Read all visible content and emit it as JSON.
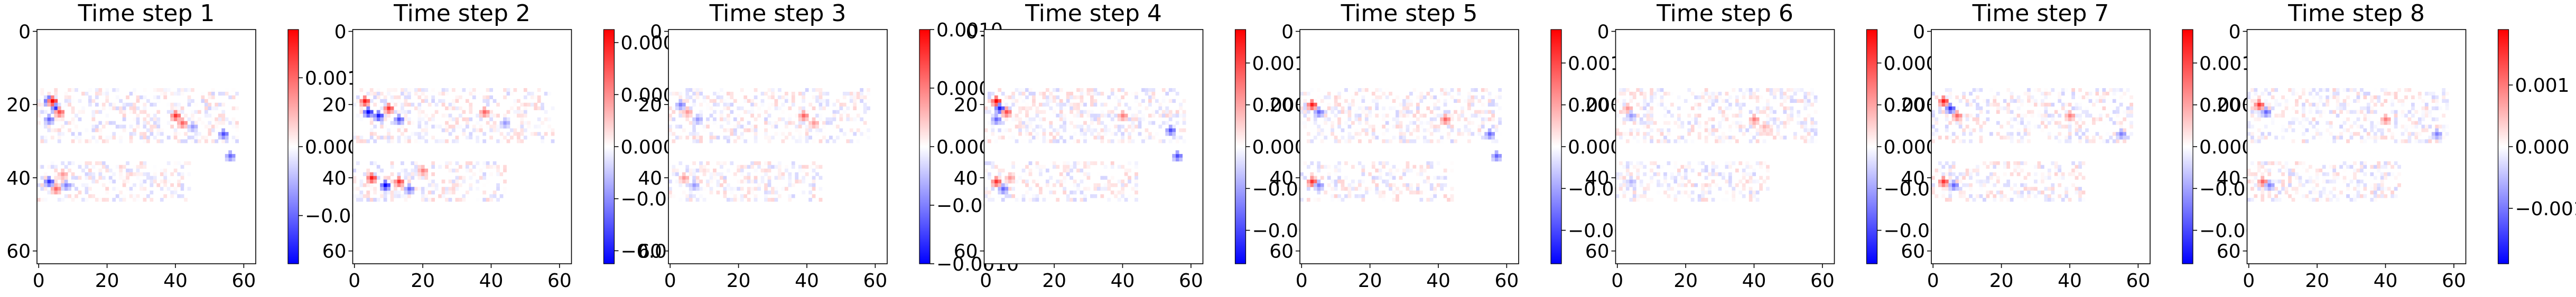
{
  "colors": {
    "negative": "#0000ff",
    "zero": "#ffffff",
    "positive": "#ff0000",
    "axis": "#000000"
  },
  "colormap": "bwr",
  "chart_data": [
    {
      "type": "heatmap",
      "title": "Time step 1",
      "grid": false,
      "xlim": [
        0,
        63
      ],
      "ylim": [
        63,
        0
      ],
      "xticks": [
        "0",
        "20",
        "40",
        "60"
      ],
      "yticks": [
        "0",
        "20",
        "40",
        "60"
      ],
      "clim": [
        -0.0017,
        0.0017
      ],
      "colorbar_ticks": [
        {
          "value": 0.001,
          "label": "0.001"
        },
        {
          "value": 0.0,
          "label": "0.000"
        },
        {
          "value": -0.001,
          "label": "−0.001"
        }
      ],
      "features": [
        {
          "x": 3,
          "y": 19,
          "v": -1.0
        },
        {
          "x": 4,
          "y": 19,
          "v": 1.0
        },
        {
          "x": 5,
          "y": 21,
          "v": -0.8
        },
        {
          "x": 6,
          "y": 22,
          "v": 0.7
        },
        {
          "x": 3,
          "y": 24,
          "v": -0.6
        },
        {
          "x": 40,
          "y": 23,
          "v": 0.8
        },
        {
          "x": 42,
          "y": 25,
          "v": 0.6
        },
        {
          "x": 45,
          "y": 26,
          "v": -0.4
        },
        {
          "x": 54,
          "y": 28,
          "v": -0.7
        },
        {
          "x": 56,
          "y": 34,
          "v": -0.6
        },
        {
          "x": 3,
          "y": 41,
          "v": -0.8
        },
        {
          "x": 5,
          "y": 43,
          "v": 0.6
        },
        {
          "x": 8,
          "y": 42,
          "v": -0.5
        },
        {
          "x": 7,
          "y": 39,
          "v": 0.4
        }
      ]
    },
    {
      "type": "heatmap",
      "title": "Time step 2",
      "grid": false,
      "xlim": [
        0,
        63
      ],
      "ylim": [
        63,
        0
      ],
      "xticks": [
        "0",
        "20",
        "40",
        "60"
      ],
      "yticks": [
        "0",
        "20",
        "40",
        "60"
      ],
      "clim": [
        -0.00045,
        0.00045
      ],
      "colorbar_ticks": [
        {
          "value": 0.0004,
          "label": "0.0004"
        },
        {
          "value": 0.0002,
          "label": "0.0002"
        },
        {
          "value": 0.0,
          "label": "0.0000"
        },
        {
          "value": -0.0002,
          "label": "−0.0002"
        },
        {
          "value": -0.0004,
          "label": "−0.0004"
        }
      ],
      "features": [
        {
          "x": 3,
          "y": 19,
          "v": 0.9
        },
        {
          "x": 4,
          "y": 22,
          "v": -1.0
        },
        {
          "x": 7,
          "y": 23,
          "v": -0.9
        },
        {
          "x": 10,
          "y": 21,
          "v": 0.8
        },
        {
          "x": 13,
          "y": 24,
          "v": -0.7
        },
        {
          "x": 38,
          "y": 22,
          "v": 0.6
        },
        {
          "x": 44,
          "y": 25,
          "v": -0.4
        },
        {
          "x": 5,
          "y": 40,
          "v": 0.9
        },
        {
          "x": 9,
          "y": 42,
          "v": -1.0
        },
        {
          "x": 13,
          "y": 41,
          "v": 0.8
        },
        {
          "x": 16,
          "y": 43,
          "v": -0.6
        },
        {
          "x": 20,
          "y": 38,
          "v": 0.5
        }
      ]
    },
    {
      "type": "heatmap",
      "title": "Time step 3",
      "grid": false,
      "xlim": [
        0,
        63
      ],
      "ylim": [
        63,
        0
      ],
      "xticks": [
        "0",
        "20",
        "40",
        "60"
      ],
      "yticks": [
        "0",
        "20",
        "40",
        "60"
      ],
      "clim": [
        -0.001,
        0.001
      ],
      "colorbar_ticks": [
        {
          "value": 0.001,
          "label": "0.0010"
        },
        {
          "value": 0.0005,
          "label": "0.0005"
        },
        {
          "value": 0.0,
          "label": "0.0000"
        },
        {
          "value": -0.0005,
          "label": "−0.0005"
        },
        {
          "value": -0.001,
          "label": "−0.0010"
        }
      ],
      "features": [
        {
          "x": 3,
          "y": 20,
          "v": -0.5
        },
        {
          "x": 5,
          "y": 22,
          "v": 0.4
        },
        {
          "x": 8,
          "y": 24,
          "v": -0.4
        },
        {
          "x": 39,
          "y": 23,
          "v": 0.6
        },
        {
          "x": 42,
          "y": 25,
          "v": 0.4
        },
        {
          "x": 4,
          "y": 40,
          "v": 0.4
        },
        {
          "x": 7,
          "y": 42,
          "v": -0.4
        }
      ]
    },
    {
      "type": "heatmap",
      "title": "Time step 4",
      "grid": false,
      "xlim": [
        0,
        63
      ],
      "ylim": [
        63,
        0
      ],
      "xticks": [
        "0",
        "20",
        "40",
        "60"
      ],
      "yticks": [
        "0",
        "20",
        "40",
        "60"
      ],
      "clim": [
        -0.0014,
        0.0014
      ],
      "colorbar_ticks": [
        {
          "value": 0.001,
          "label": "0.0010"
        },
        {
          "value": 0.0005,
          "label": "0.0005"
        },
        {
          "value": 0.0,
          "label": "0.0000"
        },
        {
          "value": -0.0005,
          "label": "−0.0005"
        },
        {
          "value": -0.001,
          "label": "−0.0010"
        }
      ],
      "features": [
        {
          "x": 3,
          "y": 19,
          "v": 1.0
        },
        {
          "x": 4,
          "y": 21,
          "v": -0.9
        },
        {
          "x": 6,
          "y": 22,
          "v": 0.7
        },
        {
          "x": 3,
          "y": 24,
          "v": -0.6
        },
        {
          "x": 40,
          "y": 23,
          "v": 0.5
        },
        {
          "x": 54,
          "y": 27,
          "v": -0.7
        },
        {
          "x": 56,
          "y": 34,
          "v": -0.7
        },
        {
          "x": 3,
          "y": 41,
          "v": 0.8
        },
        {
          "x": 5,
          "y": 43,
          "v": -0.6
        },
        {
          "x": 7,
          "y": 40,
          "v": 0.4
        }
      ]
    },
    {
      "type": "heatmap",
      "title": "Time step 5",
      "grid": false,
      "xlim": [
        0,
        63
      ],
      "ylim": [
        63,
        0
      ],
      "xticks": [
        "0",
        "20",
        "40",
        "60"
      ],
      "yticks": [
        "0",
        "20",
        "40",
        "60"
      ],
      "clim": [
        -0.0014,
        0.0014
      ],
      "colorbar_ticks": [
        {
          "value": 0.001,
          "label": "0.0010"
        },
        {
          "value": 0.0005,
          "label": "0.0005"
        },
        {
          "value": 0.0,
          "label": "0.0000"
        },
        {
          "value": -0.0005,
          "label": "−0.0005"
        },
        {
          "value": -0.001,
          "label": "−0.0010"
        }
      ],
      "features": [
        {
          "x": 3,
          "y": 20,
          "v": 0.9
        },
        {
          "x": 5,
          "y": 22,
          "v": -0.6
        },
        {
          "x": 42,
          "y": 24,
          "v": 0.6
        },
        {
          "x": 55,
          "y": 28,
          "v": -0.6
        },
        {
          "x": 57,
          "y": 34,
          "v": -0.6
        },
        {
          "x": 3,
          "y": 41,
          "v": 0.8
        },
        {
          "x": 5,
          "y": 42,
          "v": -0.5
        }
      ]
    },
    {
      "type": "heatmap",
      "title": "Time step 6",
      "grid": false,
      "xlim": [
        0,
        63
      ],
      "ylim": [
        63,
        0
      ],
      "xticks": [
        "0",
        "20",
        "40",
        "60"
      ],
      "yticks": [
        "0",
        "20",
        "40",
        "60"
      ],
      "clim": [
        -0.0007,
        0.0007
      ],
      "colorbar_ticks": [
        {
          "value": 0.0005,
          "label": "0.00050"
        },
        {
          "value": 0.00025,
          "label": "0.00025"
        },
        {
          "value": 0.0,
          "label": "0.00000"
        },
        {
          "value": -0.00025,
          "label": "−0.00025"
        },
        {
          "value": -0.0005,
          "label": "−0.00050"
        }
      ],
      "features": [
        {
          "x": 3,
          "y": 21,
          "v": 0.4
        },
        {
          "x": 4,
          "y": 23,
          "v": -0.4
        },
        {
          "x": 40,
          "y": 24,
          "v": 0.5
        },
        {
          "x": 43,
          "y": 26,
          "v": 0.3
        },
        {
          "x": 4,
          "y": 41,
          "v": -0.3
        }
      ]
    },
    {
      "type": "heatmap",
      "title": "Time step 7",
      "grid": false,
      "xlim": [
        0,
        63
      ],
      "ylim": [
        63,
        0
      ],
      "xticks": [
        "0",
        "20",
        "40",
        "60"
      ],
      "yticks": [
        "0",
        "20",
        "40",
        "60"
      ],
      "clim": [
        -0.0014,
        0.0014
      ],
      "colorbar_ticks": [
        {
          "value": 0.001,
          "label": "0.0010"
        },
        {
          "value": 0.0005,
          "label": "0.0005"
        },
        {
          "value": 0.0,
          "label": "0.0000"
        },
        {
          "value": -0.0005,
          "label": "−0.0005"
        },
        {
          "value": -0.001,
          "label": "−0.0010"
        }
      ],
      "features": [
        {
          "x": 3,
          "y": 19,
          "v": 0.9
        },
        {
          "x": 5,
          "y": 21,
          "v": -0.8
        },
        {
          "x": 7,
          "y": 23,
          "v": 0.6
        },
        {
          "x": 40,
          "y": 23,
          "v": 0.5
        },
        {
          "x": 55,
          "y": 28,
          "v": -0.5
        },
        {
          "x": 3,
          "y": 41,
          "v": 0.8
        },
        {
          "x": 6,
          "y": 42,
          "v": -0.6
        }
      ]
    },
    {
      "type": "heatmap",
      "title": "Time step 8",
      "grid": false,
      "xlim": [
        0,
        63
      ],
      "ylim": [
        63,
        0
      ],
      "xticks": [
        "0",
        "20",
        "40",
        "60"
      ],
      "yticks": [
        "0",
        "20",
        "40",
        "60"
      ],
      "clim": [
        -0.0019,
        0.0019
      ],
      "colorbar_ticks": [
        {
          "value": 0.001,
          "label": "0.001"
        },
        {
          "value": 0.0,
          "label": "0.000"
        },
        {
          "value": -0.001,
          "label": "−0.001"
        }
      ],
      "features": [
        {
          "x": 3,
          "y": 20,
          "v": 0.8
        },
        {
          "x": 5,
          "y": 22,
          "v": -0.6
        },
        {
          "x": 40,
          "y": 24,
          "v": 0.5
        },
        {
          "x": 55,
          "y": 28,
          "v": -0.5
        },
        {
          "x": 4,
          "y": 41,
          "v": 0.6
        },
        {
          "x": 6,
          "y": 42,
          "v": -0.5
        }
      ]
    }
  ]
}
